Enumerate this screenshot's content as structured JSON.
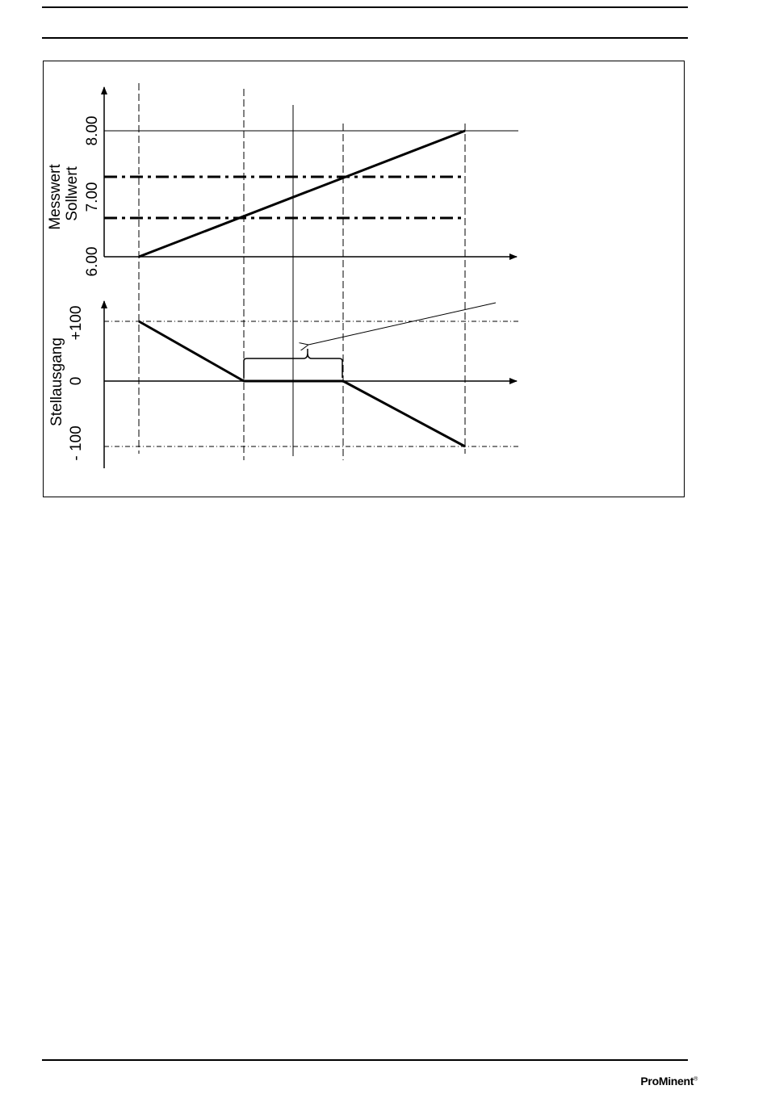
{
  "header": {},
  "figure": {
    "upper_axis": {
      "label_line1": "Messwert",
      "label_line2": "Sollwert",
      "ticks": [
        "6.00",
        "7.00",
        "8.00"
      ]
    },
    "lower_axis": {
      "label": "Stellausgang",
      "ticks": [
        "- 100",
        "0",
        "+100"
      ]
    }
  },
  "footer": {
    "logo": "ProMinent",
    "logo_mark": "®"
  }
}
